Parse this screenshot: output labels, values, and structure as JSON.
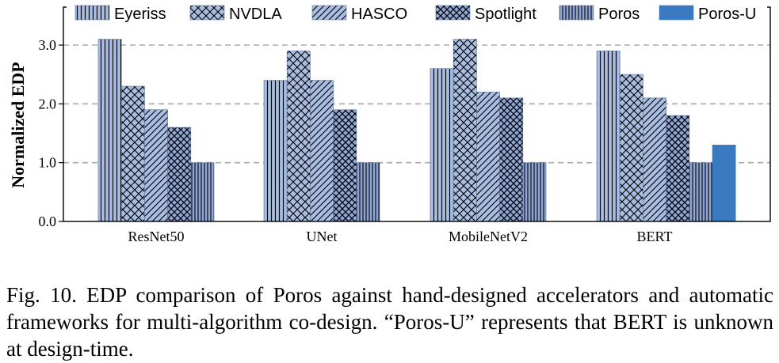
{
  "chart_data": {
    "type": "bar",
    "title": "",
    "xlabel": "",
    "ylabel": "Normalized EDP",
    "ylim": [
      0,
      3.0
    ],
    "yticks": [
      "0.0",
      "1.0",
      "2.0",
      "3.0"
    ],
    "ytick_values": [
      0,
      1,
      2,
      3
    ],
    "grid": "horizontal dashed",
    "legend_position": "top",
    "categories": [
      "ResNet50",
      "UNet",
      "MobileNetV2",
      "BERT"
    ],
    "series": [
      {
        "name": "Eyeriss",
        "pattern": "vertical",
        "color": "#a8bde0",
        "values": [
          3.1,
          2.4,
          2.6,
          2.9
        ]
      },
      {
        "name": "NVDLA",
        "pattern": "crosshatch",
        "color": "#a8bde0",
        "values": [
          2.3,
          2.9,
          3.1,
          2.5
        ]
      },
      {
        "name": "HASCO",
        "pattern": "diagonal",
        "color": "#a8bde0",
        "values": [
          1.9,
          2.4,
          2.2,
          2.1
        ]
      },
      {
        "name": "Spotlight",
        "pattern": "crosshatch-dense",
        "color": "#8fa6d6",
        "values": [
          1.6,
          1.9,
          2.1,
          1.8
        ]
      },
      {
        "name": "Poros",
        "pattern": "vertical-dense",
        "color": "#8fa6d6",
        "values": [
          1.0,
          1.0,
          1.0,
          1.0
        ]
      },
      {
        "name": "Poros-U",
        "pattern": "solid",
        "color": "#3a7ac0",
        "values": [
          null,
          null,
          null,
          1.3
        ]
      }
    ]
  },
  "caption": {
    "text": "Fig. 10.  EDP comparison of Poros against hand-designed accelerators and automatic frameworks for multi-algorithm co-design. “Poros-U” represents that BERT is unknown at design-time."
  }
}
